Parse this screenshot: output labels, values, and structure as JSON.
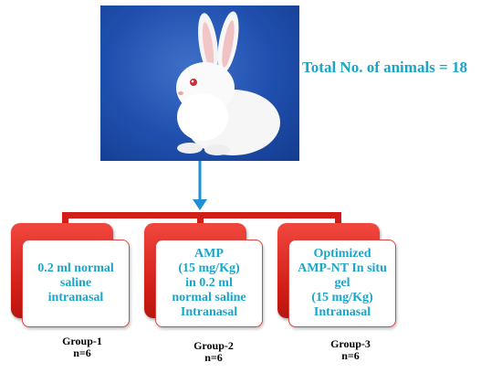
{
  "total_label": "Total No. of animals = 18",
  "groups": [
    {
      "box_text": "0.2 ml normal\nsaline\nintranasal",
      "caption": "Group-1\nn=6"
    },
    {
      "box_text": "AMP\n(15 mg/Kg)\nin 0.2 ml\nnormal saline\nIntranasal",
      "caption": "Group-2\nn=6"
    },
    {
      "box_text": "Optimized\nAMP-NT In situ\ngel\n(15 mg/Kg)\nIntranasal",
      "caption": "Group-3\nn=6"
    }
  ],
  "colors": {
    "accent_text": "#1aa5c8",
    "box_red": "#d11e16",
    "arrow": "#1f8fd6"
  },
  "icons": {
    "photo": "white-rabbit-photo"
  }
}
